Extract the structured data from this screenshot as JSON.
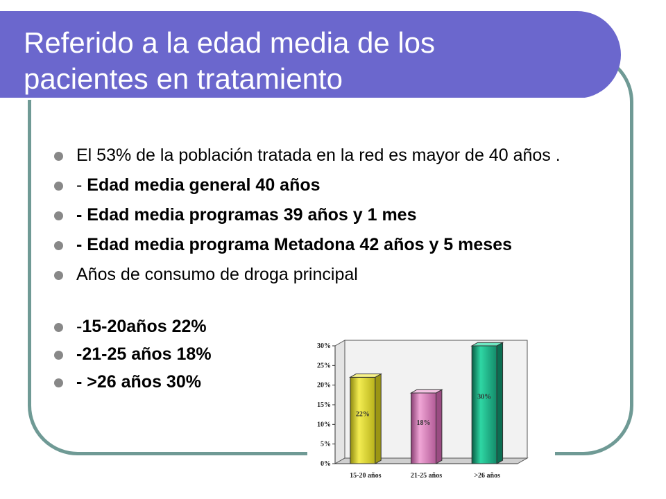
{
  "slide": {
    "title_line1": "Referido a la edad media de los",
    "title_line2": "pacientes en tratamiento"
  },
  "bullets": [
    {
      "text": "El 53% de la población tratada en la red es mayor de 40 años ."
    },
    {
      "prefix": "- ",
      "bold": "Edad media general 40 años"
    },
    {
      "bold": "- Edad media programas 39 años y 1 mes"
    },
    {
      "bold": "- Edad media programa Metadona 42 años y 5 meses"
    },
    {
      "text": "Años de consumo de droga principal"
    },
    {
      "prefix": "-",
      "bold": "15-20años 22%"
    },
    {
      "bold": "-21-25 años 18%"
    },
    {
      "bold": "- >26 años 30%"
    }
  ],
  "colors": {
    "title_bar": "#6b67cd",
    "frame": "#6f9a95",
    "bullet_dot": "#888888"
  },
  "chart_data": {
    "type": "bar",
    "categories": [
      "15-20 años",
      "21-25 años",
      ">26 años"
    ],
    "values": [
      22,
      18,
      30
    ],
    "data_labels": [
      "22%",
      "18%",
      "30%"
    ],
    "y_ticks": [
      "0%",
      "5%",
      "10%",
      "15%",
      "20%",
      "25%",
      "30%"
    ],
    "ylim": [
      0,
      30
    ],
    "grid": false,
    "style": "3d",
    "colors": [
      "#e8e02c",
      "#e084c0",
      "#1ea882"
    ]
  }
}
